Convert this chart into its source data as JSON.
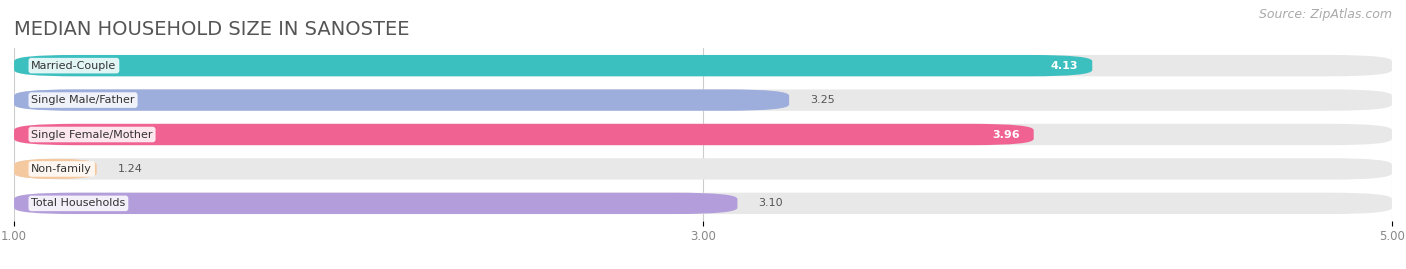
{
  "title": "MEDIAN HOUSEHOLD SIZE IN SANOSTEE",
  "source": "Source: ZipAtlas.com",
  "categories": [
    "Married-Couple",
    "Single Male/Father",
    "Single Female/Mother",
    "Non-family",
    "Total Households"
  ],
  "values": [
    4.13,
    3.25,
    3.96,
    1.24,
    3.1
  ],
  "bar_colors": [
    "#3bbfbf",
    "#9daedd",
    "#f06292",
    "#f5c9a0",
    "#b39ddb"
  ],
  "xlim_start": 1.0,
  "xlim_end": 5.0,
  "xticks": [
    1.0,
    3.0,
    5.0
  ],
  "background_color": "#ffffff",
  "bar_bg_color": "#e8e8e8",
  "title_fontsize": 14,
  "source_fontsize": 9,
  "bar_height": 0.62,
  "bar_gap": 0.38
}
